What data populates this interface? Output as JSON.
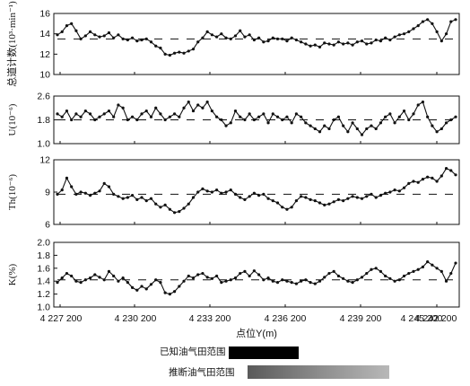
{
  "chart_data": [
    {
      "type": "line",
      "panel": "total",
      "ylabel": "总道计数(10³·min⁻¹)",
      "ylim": [
        10,
        16
      ],
      "yticks": [
        "10",
        "12",
        "14",
        "16"
      ],
      "mean_line": 13.5,
      "series": [
        {
          "values": [
            13.9,
            14.2,
            14.8,
            15.0,
            14.3,
            13.5,
            13.8,
            14.2,
            13.9,
            13.7,
            13.8,
            14.1,
            13.6,
            13.9,
            13.5,
            13.4,
            13.6,
            13.3,
            13.4,
            13.5,
            13.2,
            12.8,
            12.6,
            12.0,
            11.9,
            12.1,
            12.2,
            12.1,
            12.3,
            12.5,
            13.2,
            13.6,
            14.2,
            13.9,
            13.7,
            14.0,
            13.6,
            13.5,
            13.8,
            14.3,
            13.7,
            13.9,
            13.4,
            13.6,
            13.2,
            13.3,
            13.6,
            13.5,
            13.5,
            13.3,
            13.6,
            13.4,
            13.2,
            13.0,
            12.8,
            12.9,
            12.7,
            13.1,
            13.0,
            12.9,
            13.2,
            13.0,
            13.1,
            12.9,
            13.2,
            13.3,
            13.0,
            13.1,
            13.4,
            13.3,
            13.6,
            13.4,
            13.7,
            13.9,
            14.0,
            14.2,
            14.5,
            14.8,
            15.2,
            15.4,
            15.0,
            14.2,
            13.3,
            14.0,
            15.2,
            15.4
          ]
        }
      ]
    },
    {
      "type": "line",
      "panel": "U",
      "ylabel": "U(10⁻⁶)",
      "ylim": [
        1.0,
        2.6
      ],
      "yticks": [
        "1.0",
        "1.8",
        "2.6"
      ],
      "mean_line": 1.8,
      "series": [
        {
          "values": [
            2.0,
            1.9,
            2.1,
            1.8,
            2.0,
            1.9,
            2.1,
            2.0,
            1.8,
            1.9,
            2.0,
            2.1,
            1.9,
            2.3,
            2.2,
            1.8,
            1.9,
            1.8,
            2.0,
            2.1,
            1.9,
            2.2,
            2.0,
            1.8,
            1.9,
            2.0,
            1.9,
            2.2,
            2.4,
            2.1,
            2.3,
            2.2,
            2.4,
            2.1,
            1.9,
            1.8,
            1.6,
            1.7,
            2.1,
            1.9,
            1.8,
            2.0,
            1.8,
            1.9,
            2.0,
            1.7,
            2.0,
            1.9,
            1.8,
            1.9,
            1.7,
            2.0,
            1.9,
            1.7,
            1.6,
            1.5,
            1.4,
            1.6,
            1.5,
            1.8,
            1.9,
            1.6,
            1.4,
            1.7,
            1.5,
            1.3,
            1.5,
            1.6,
            1.5,
            1.7,
            1.9,
            2.0,
            1.7,
            1.9,
            2.1,
            1.8,
            2.0,
            2.3,
            2.4,
            1.9,
            1.6,
            1.4,
            1.5,
            1.7,
            1.8,
            1.9
          ]
        }
      ]
    },
    {
      "type": "line",
      "panel": "Th",
      "ylabel": "Th(10⁻⁶)",
      "ylim": [
        6,
        12
      ],
      "yticks": [
        "6",
        "9",
        "12"
      ],
      "mean_line": 8.8,
      "series": [
        {
          "values": [
            8.8,
            9.2,
            10.3,
            9.5,
            8.8,
            9.0,
            8.9,
            8.7,
            8.9,
            9.1,
            9.8,
            9.5,
            8.8,
            8.6,
            8.4,
            8.5,
            8.7,
            8.3,
            8.5,
            8.2,
            8.4,
            7.9,
            7.6,
            7.8,
            7.4,
            7.1,
            7.2,
            7.5,
            7.9,
            8.5,
            9.0,
            9.3,
            9.1,
            9.0,
            9.2,
            8.9,
            9.0,
            9.2,
            8.8,
            8.5,
            8.3,
            8.6,
            8.9,
            8.7,
            8.8,
            8.4,
            8.2,
            8.0,
            7.6,
            7.4,
            7.6,
            8.2,
            8.6,
            8.5,
            8.3,
            8.2,
            8.0,
            7.8,
            7.9,
            8.1,
            8.3,
            8.2,
            8.4,
            8.6,
            8.5,
            8.4,
            8.6,
            8.8,
            8.5,
            8.7,
            8.9,
            9.0,
            9.2,
            9.1,
            9.4,
            9.8,
            10.0,
            9.9,
            10.2,
            10.4,
            10.3,
            10.0,
            10.5,
            11.2,
            11.0,
            10.6
          ]
        }
      ]
    },
    {
      "type": "line",
      "panel": "K",
      "ylabel": "K(%)",
      "ylim": [
        1.0,
        2.0
      ],
      "yticks": [
        "1.0",
        "1.2",
        "1.4",
        "1.6",
        "1.8",
        "2.0"
      ],
      "mean_line": 1.42,
      "series": [
        {
          "values": [
            1.38,
            1.45,
            1.52,
            1.48,
            1.4,
            1.38,
            1.42,
            1.45,
            1.5,
            1.46,
            1.42,
            1.55,
            1.48,
            1.4,
            1.45,
            1.38,
            1.3,
            1.26,
            1.32,
            1.28,
            1.35,
            1.42,
            1.38,
            1.22,
            1.2,
            1.24,
            1.32,
            1.4,
            1.48,
            1.45,
            1.5,
            1.52,
            1.46,
            1.44,
            1.48,
            1.38,
            1.4,
            1.42,
            1.45,
            1.52,
            1.55,
            1.48,
            1.56,
            1.5,
            1.42,
            1.45,
            1.4,
            1.38,
            1.42,
            1.4,
            1.38,
            1.36,
            1.4,
            1.42,
            1.38,
            1.36,
            1.4,
            1.46,
            1.52,
            1.55,
            1.48,
            1.44,
            1.4,
            1.38,
            1.42,
            1.46,
            1.52,
            1.58,
            1.6,
            1.55,
            1.48,
            1.44,
            1.4,
            1.42,
            1.48,
            1.52,
            1.55,
            1.58,
            1.62,
            1.7,
            1.65,
            1.6,
            1.55,
            1.4,
            1.52,
            1.68
          ]
        }
      ]
    }
  ],
  "xaxis": {
    "label": "点位Y(m)",
    "ticks": [
      "4 227 200",
      "4 230 200",
      "4 233 200",
      "4 236 200",
      "4 239 200",
      "4 242 200",
      "4 245 200"
    ],
    "range": [
      4227200,
      4247200
    ]
  },
  "legend": [
    {
      "label": "已知油气田范围",
      "color": "#000000"
    },
    {
      "label": "推断油气田范围",
      "color": "#8a8a8a"
    }
  ]
}
